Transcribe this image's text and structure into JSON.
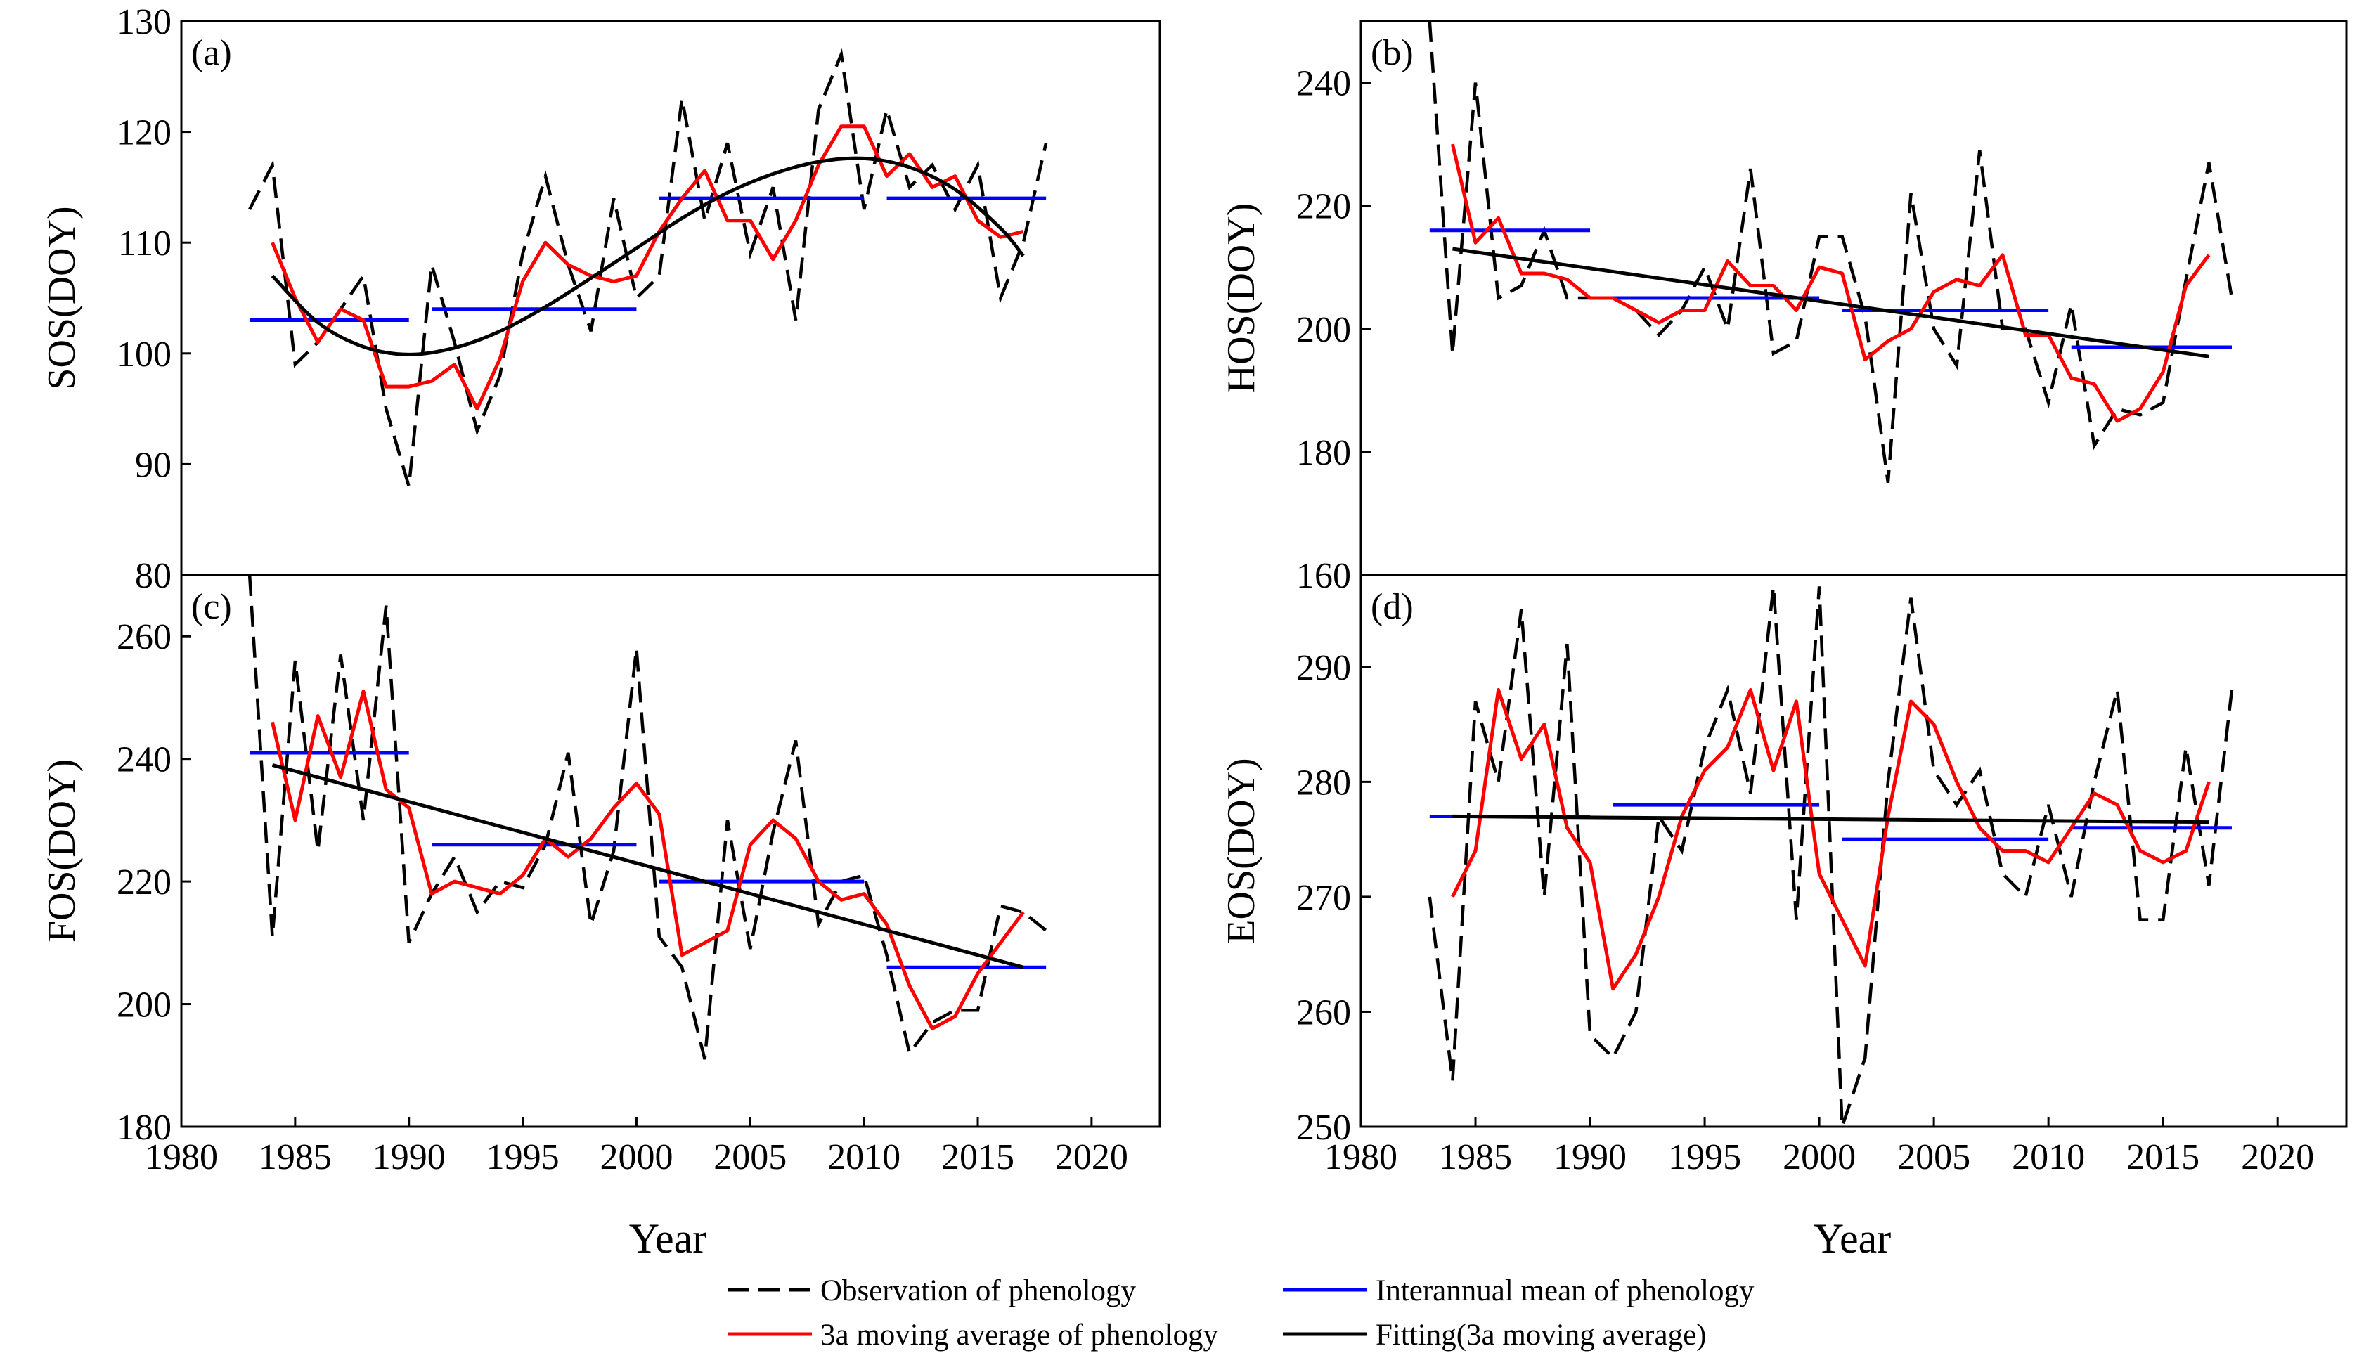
{
  "legend": {
    "observation": "Observation of phenology",
    "mean": "Interannual mean of phenology",
    "moving": "3a moving average of phenology",
    "fitting": "Fitting(3a moving average)"
  },
  "colors": {
    "observation": "#000000",
    "mean": "#0000ff",
    "moving": "#ff0000",
    "fitting": "#000000"
  },
  "chart_data": [
    {
      "type": "line",
      "panel_label": "(a)",
      "ylabel": "SOS(DOY)",
      "xlabel": "",
      "xlim": [
        1980,
        2023
      ],
      "ylim": [
        80,
        130
      ],
      "xticks": [
        1980,
        1985,
        1990,
        1995,
        2000,
        2005,
        2010,
        2015,
        2020
      ],
      "yticks": [
        90,
        100,
        110,
        120,
        130
      ],
      "x": [
        1983,
        1984,
        1985,
        1986,
        1987,
        1988,
        1989,
        1990,
        1991,
        1992,
        1993,
        1994,
        1995,
        1996,
        1997,
        1998,
        1999,
        2000,
        2001,
        2002,
        2003,
        2004,
        2005,
        2006,
        2007,
        2008,
        2009,
        2010,
        2011,
        2012,
        2013,
        2014,
        2015,
        2016,
        2017,
        2018
      ],
      "series": [
        {
          "name": "Observation of phenology",
          "values": [
            113,
            117,
            99,
            101,
            104,
            107,
            95,
            88,
            108,
            101,
            93,
            98,
            109,
            116,
            108,
            102,
            114,
            105,
            107,
            123,
            112,
            119,
            109,
            115,
            103,
            122,
            127,
            113,
            122,
            115,
            117,
            113,
            117,
            105,
            110,
            119
          ]
        },
        {
          "name": "3a moving average of phenology",
          "x": [
            1984,
            1985,
            1986,
            1987,
            1988,
            1989,
            1990,
            1991,
            1992,
            1993,
            1994,
            1995,
            1996,
            1997,
            1998,
            1999,
            2000,
            2001,
            2002,
            2003,
            2004,
            2005,
            2006,
            2007,
            2008,
            2009,
            2010,
            2011,
            2012,
            2013,
            2014,
            2015,
            2016,
            2017
          ],
          "values": [
            110,
            105,
            101,
            104,
            103,
            97,
            97,
            97.5,
            99,
            95,
            99.5,
            106.5,
            110,
            108,
            107,
            106.5,
            107,
            111,
            114,
            116.5,
            112,
            112,
            108.5,
            112,
            117,
            120.5,
            120.5,
            116,
            118,
            115,
            116,
            112,
            110.5,
            111
          ]
        },
        {
          "name": "Fitting(3a moving average)",
          "x": [
            1984,
            1986,
            1988,
            1990,
            1992,
            1994,
            1996,
            1998,
            2000,
            2002,
            2004,
            2006,
            2008,
            2010,
            2012,
            2014,
            2016,
            2017
          ],
          "values": [
            107,
            102.8,
            100.6,
            99.9,
            100.5,
            102,
            104.2,
            106.8,
            109.5,
            112.2,
            114.5,
            116.2,
            117.3,
            117.6,
            116.8,
            114.8,
            111.3,
            108.8
          ]
        }
      ],
      "interannual_means": [
        {
          "start": 1983,
          "end": 1990,
          "value": 103
        },
        {
          "start": 1991,
          "end": 2000,
          "value": 104
        },
        {
          "start": 2001,
          "end": 2010,
          "value": 114
        },
        {
          "start": 2011,
          "end": 2018,
          "value": 114
        }
      ]
    },
    {
      "type": "line",
      "panel_label": "(b)",
      "ylabel": "HOS(DOY)",
      "xlabel": "Year",
      "xlim": [
        1980,
        2023
      ],
      "ylim": [
        160,
        250
      ],
      "xticks": [
        1980,
        1985,
        1990,
        1995,
        2000,
        2005,
        2010,
        2015,
        2020
      ],
      "yticks": [
        160,
        180,
        200,
        220,
        240
      ],
      "x": [
        1983,
        1984,
        1985,
        1986,
        1987,
        1988,
        1989,
        1990,
        1991,
        1992,
        1993,
        1994,
        1995,
        1996,
        1997,
        1998,
        1999,
        2000,
        2001,
        2002,
        2003,
        2004,
        2005,
        2006,
        2007,
        2008,
        2009,
        2010,
        2011,
        2012,
        2013,
        2014,
        2015,
        2016,
        2017,
        2018
      ],
      "series": [
        {
          "name": "Observation of phenology",
          "values": [
            250,
            196,
            240,
            205,
            207,
            216,
            205,
            205,
            205,
            203,
            199,
            203,
            210,
            200,
            226,
            196,
            198,
            215,
            215,
            202,
            175,
            222,
            200,
            194,
            229,
            200,
            200,
            188,
            204,
            181,
            187,
            186,
            188,
            208,
            227,
            205
          ]
        },
        {
          "name": "3a moving average of phenology",
          "x": [
            1984,
            1985,
            1986,
            1987,
            1988,
            1989,
            1990,
            1991,
            1992,
            1993,
            1994,
            1995,
            1996,
            1997,
            1998,
            1999,
            2000,
            2001,
            2002,
            2003,
            2004,
            2005,
            2006,
            2007,
            2008,
            2009,
            2010,
            2011,
            2012,
            2013,
            2014,
            2015,
            2016,
            2017
          ],
          "values": [
            230,
            214,
            218,
            209,
            209,
            208,
            205,
            205,
            203,
            201,
            203,
            203,
            211,
            207,
            207,
            203,
            210,
            209,
            195,
            198,
            200,
            206,
            208,
            207,
            212,
            199,
            199,
            192,
            191,
            185,
            187,
            193,
            207,
            212
          ]
        },
        {
          "name": "Fitting(3a moving average)",
          "x": [
            1984,
            2017
          ],
          "values": [
            213,
            195.5
          ]
        }
      ],
      "interannual_means": [
        {
          "start": 1983,
          "end": 1990,
          "value": 216
        },
        {
          "start": 1991,
          "end": 2000,
          "value": 205
        },
        {
          "start": 2001,
          "end": 2010,
          "value": 203
        },
        {
          "start": 2011,
          "end": 2018,
          "value": 197
        }
      ]
    },
    {
      "type": "line",
      "panel_label": "(c)",
      "ylabel": "FOS(DOY)",
      "xlabel": "Year",
      "xlim": [
        1980,
        2023
      ],
      "ylim": [
        180,
        270
      ],
      "xticks": [
        1980,
        1985,
        1990,
        1995,
        2000,
        2005,
        2010,
        2015,
        2020
      ],
      "yticks": [
        180,
        200,
        220,
        240,
        260
      ],
      "x": [
        1983,
        1984,
        1985,
        1986,
        1987,
        1988,
        1989,
        1990,
        1991,
        1992,
        1993,
        1994,
        1995,
        1996,
        1997,
        1998,
        1999,
        2000,
        2001,
        2002,
        2003,
        2004,
        2005,
        2006,
        2007,
        2008,
        2009,
        2010,
        2011,
        2012,
        2013,
        2014,
        2015,
        2016,
        2017,
        2018
      ],
      "series": [
        {
          "name": "Observation of phenology",
          "values": [
            270,
            211,
            256,
            225,
            257,
            230,
            265,
            210,
            218,
            224,
            215,
            220,
            219,
            226,
            241,
            213,
            225,
            258,
            211,
            206,
            191,
            230,
            209,
            228,
            243,
            213,
            220,
            221,
            208,
            192,
            197,
            199,
            199,
            216,
            215,
            212
          ]
        },
        {
          "name": "3a moving average of phenology",
          "x": [
            1984,
            1985,
            1986,
            1987,
            1988,
            1989,
            1990,
            1991,
            1992,
            1993,
            1994,
            1995,
            1996,
            1997,
            1998,
            1999,
            2000,
            2001,
            2002,
            2003,
            2004,
            2005,
            2006,
            2007,
            2008,
            2009,
            2010,
            2011,
            2012,
            2013,
            2014,
            2015,
            2016,
            2017
          ],
          "values": [
            246,
            230,
            247,
            237,
            251,
            235,
            232,
            218,
            220,
            219,
            218,
            221,
            227,
            224,
            227,
            232,
            236,
            231,
            208,
            210,
            212,
            226,
            230,
            227,
            220,
            217,
            218,
            213,
            203,
            196,
            198,
            205,
            210,
            215
          ]
        },
        {
          "name": "Fitting(3a moving average)",
          "x": [
            1984,
            2017
          ],
          "values": [
            239,
            206
          ]
        }
      ],
      "interannual_means": [
        {
          "start": 1983,
          "end": 1990,
          "value": 241
        },
        {
          "start": 1991,
          "end": 2000,
          "value": 226
        },
        {
          "start": 2001,
          "end": 2010,
          "value": 220
        },
        {
          "start": 2011,
          "end": 2018,
          "value": 206
        }
      ]
    },
    {
      "type": "line",
      "panel_label": "(d)",
      "ylabel": "EOS(DOY)",
      "xlabel": "Year",
      "xlim": [
        1980,
        2023
      ],
      "ylim": [
        250,
        298
      ],
      "xticks": [
        1980,
        1985,
        1990,
        1995,
        2000,
        2005,
        2010,
        2015,
        2020
      ],
      "yticks": [
        250,
        260,
        270,
        280,
        290
      ],
      "x": [
        1983,
        1984,
        1985,
        1986,
        1987,
        1988,
        1989,
        1990,
        1991,
        1992,
        1993,
        1994,
        1995,
        1996,
        1997,
        1998,
        1999,
        2000,
        2001,
        2002,
        2003,
        2004,
        2005,
        2006,
        2007,
        2008,
        2009,
        2010,
        2011,
        2012,
        2013,
        2014,
        2015,
        2016,
        2017,
        2018
      ],
      "series": [
        {
          "name": "Observation of phenology",
          "values": [
            270,
            254,
            287,
            280,
            295,
            270,
            292,
            258,
            256,
            260,
            277,
            274,
            283,
            288,
            279,
            297,
            268,
            297,
            250,
            256,
            280,
            296,
            281,
            278,
            281,
            272,
            270,
            278,
            270,
            280,
            288,
            268,
            268,
            283,
            271,
            288
          ]
        },
        {
          "name": "3a moving average of phenology",
          "x": [
            1984,
            1985,
            1986,
            1987,
            1988,
            1989,
            1990,
            1991,
            1992,
            1993,
            1994,
            1995,
            1996,
            1997,
            1998,
            1999,
            2000,
            2001,
            2002,
            2003,
            2004,
            2005,
            2006,
            2007,
            2008,
            2009,
            2010,
            2011,
            2012,
            2013,
            2014,
            2015,
            2016,
            2017
          ],
          "values": [
            270,
            274,
            288,
            282,
            285,
            276,
            273,
            262,
            265,
            270,
            277,
            281,
            283,
            288,
            281,
            287,
            272,
            268,
            264,
            277,
            287,
            285,
            280,
            276,
            274,
            274,
            273,
            276,
            279,
            278,
            274,
            273,
            274,
            280
          ]
        },
        {
          "name": "Fitting(3a moving average)",
          "x": [
            1984,
            2017
          ],
          "values": [
            277,
            276.5
          ]
        }
      ],
      "interannual_means": [
        {
          "start": 1983,
          "end": 1990,
          "value": 277
        },
        {
          "start": 1991,
          "end": 2000,
          "value": 278
        },
        {
          "start": 2001,
          "end": 2010,
          "value": 275
        },
        {
          "start": 2011,
          "end": 2018,
          "value": 276
        }
      ]
    }
  ]
}
